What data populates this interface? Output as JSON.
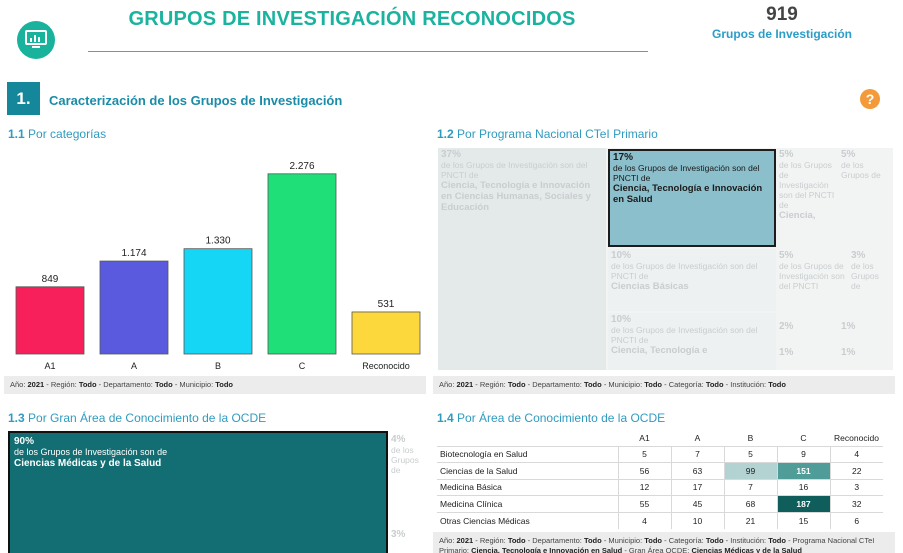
{
  "header": {
    "title": "GRUPOS DE INVESTIGACIÓN RECONOCIDOS",
    "count_value": "919",
    "count_label": "Grupos de Investigación"
  },
  "section": {
    "number": "1.",
    "title": "Caracterización de los Grupos de Investigación",
    "help": "?"
  },
  "panel_1_1": {
    "num": "1.1",
    "title": "Por categorías",
    "filters": [
      {
        "label": "Año: ",
        "value": "2021"
      },
      {
        "label": " - Región: ",
        "value": "Todo"
      },
      {
        "label": " - Departamento: ",
        "value": "Todo"
      },
      {
        "label": " - Municipio: ",
        "value": "Todo"
      }
    ]
  },
  "chart_data": {
    "type": "bar",
    "categories": [
      "A1",
      "A",
      "B",
      "C",
      "Reconocido"
    ],
    "values": [
      849,
      1174,
      1330,
      2276,
      531
    ],
    "value_labels": [
      "849",
      "1.174",
      "1.330",
      "2.276",
      "531"
    ],
    "colors": [
      "#f8205a",
      "#5a5adf",
      "#15d6f5",
      "#1fdf78",
      "#fdd83d"
    ],
    "ylim": [
      0,
      2400
    ],
    "title": "",
    "xlabel": "",
    "ylabel": ""
  },
  "panel_1_2": {
    "num": "1.2",
    "title": "Por Programa Nacional CTeI Primario",
    "cells": [
      {
        "pct": "37%",
        "desc": "de los Grupos de Investigación son del PNCTI de",
        "name": "Ciencia, Tecnología e Innovación en Ciencias Humanas, Sociales y Educación"
      },
      {
        "pct": "17%",
        "desc": "de los Grupos de Investigación son del PNCTI de",
        "name": "Ciencia, Tecnología e Innovación en Salud"
      },
      {
        "pct": "5%",
        "desc": "de los Grupos de Investigación son del PNCTI de",
        "name": "Ciencia,"
      },
      {
        "pct": "5%",
        "desc": "de los Grupos de",
        "name": ""
      },
      {
        "pct": "10%",
        "desc": "de los Grupos de Investigación son del PNCTI de",
        "name": "Ciencias Básicas"
      },
      {
        "pct": "5%",
        "desc": "de los Grupos de Investigación son del PNCTI",
        "name": ""
      },
      {
        "pct": "3%",
        "desc": "de los Grupos de",
        "name": ""
      },
      {
        "pct": "10%",
        "desc": "de los Grupos de Investigación son del PNCTI de",
        "name": "Ciencia, Tecnología e"
      },
      {
        "pct": "2%",
        "desc": "",
        "name": ""
      },
      {
        "pct": "1%",
        "desc": "",
        "name": ""
      },
      {
        "pct": "1%",
        "desc": "",
        "name": ""
      },
      {
        "pct": "1%",
        "desc": "",
        "name": ""
      }
    ],
    "filters": [
      {
        "label": "Año: ",
        "value": "2021"
      },
      {
        "label": " - Región: ",
        "value": "Todo"
      },
      {
        "label": " - Departamento: ",
        "value": "Todo"
      },
      {
        "label": " - Municipio: ",
        "value": "Todo"
      },
      {
        "label": " - Categoría: ",
        "value": "Todo"
      },
      {
        "label": " - Institución: ",
        "value": "Todo"
      }
    ]
  },
  "panel_1_3": {
    "num": "1.3",
    "title": "Por Gran Área de Conocimiento de la OCDE",
    "main": {
      "pct": "90%",
      "desc": "de los Grupos de Investigación son de",
      "name": "Ciencias Médicas y de la Salud"
    },
    "side": [
      {
        "pct": "4%",
        "desc": "de los Grupos de"
      },
      {
        "pct": "3%",
        "desc": ""
      }
    ]
  },
  "panel_1_4": {
    "num": "1.4",
    "title": "Por Área de Conocimiento de la OCDE",
    "columns": [
      "A1",
      "A",
      "B",
      "C",
      "Reconocido"
    ],
    "rows": [
      {
        "label": "Biotecnología en Salud",
        "values": [
          "5",
          "7",
          "5",
          "9",
          "4"
        ]
      },
      {
        "label": "Ciencias de la Salud",
        "values": [
          "56",
          "63",
          "99",
          "151",
          "22"
        ]
      },
      {
        "label": "Medicina Básica",
        "values": [
          "12",
          "17",
          "7",
          "16",
          "3"
        ]
      },
      {
        "label": "Medicina Clínica",
        "values": [
          "55",
          "45",
          "68",
          "187",
          "32"
        ]
      },
      {
        "label": "Otras Ciencias Médicas",
        "values": [
          "4",
          "10",
          "21",
          "15",
          "6"
        ]
      }
    ],
    "highlights": {
      "1-2": "#b3d3d3",
      "1-3": "#4f9c99",
      "3-3": "#0f5e5b"
    },
    "filter_line1": [
      {
        "label": "Año: ",
        "value": "2021"
      },
      {
        "label": " - Región: ",
        "value": "Todo"
      },
      {
        "label": " - Departamento: ",
        "value": "Todo"
      },
      {
        "label": " - Municipio: ",
        "value": "Todo"
      },
      {
        "label": " - Categoría: ",
        "value": "Todo"
      },
      {
        "label": " - Institución: ",
        "value": "Todo"
      },
      {
        "label": " - Programa Nacional CTeI",
        "value": ""
      }
    ],
    "filter_line2": [
      {
        "label": "Primario: ",
        "value": "Ciencia, Tecnología e Innovación en Salud"
      },
      {
        "label": " - Gran Área OCDE: ",
        "value": "Ciencias Médicas y de la Salud"
      }
    ]
  }
}
